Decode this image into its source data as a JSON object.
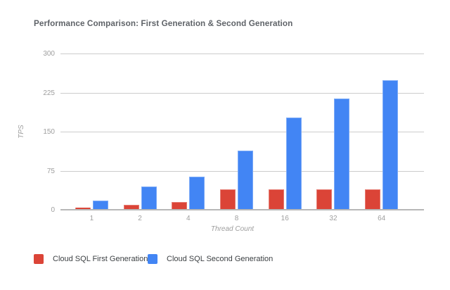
{
  "title": "Performance Comparison: First Generation & Second Generation",
  "chart_data": {
    "type": "bar",
    "title": "Performance Comparison: First Generation & Second Generation",
    "categories": [
      "1",
      "2",
      "4",
      "8",
      "16",
      "32",
      "64"
    ],
    "series": [
      {
        "name": "Cloud SQL First Generation",
        "color": "#DB4437",
        "edge_color": "#E67C73",
        "values": [
          4,
          10,
          15,
          39,
          39,
          39,
          39
        ]
      },
      {
        "name": "Cloud SQL Second Generation",
        "color": "#4285F4",
        "edge_color": "#7BAAF7",
        "values": [
          18,
          45,
          64,
          113,
          177,
          213,
          249
        ]
      }
    ],
    "xlabel": "Thread Count",
    "ylabel": "TPS",
    "ylim": [
      0,
      300
    ],
    "y_ticks": [
      0,
      75,
      150,
      225,
      300
    ],
    "grid": true,
    "legend_position": "bottom"
  },
  "colors": {
    "background": "#ffffff",
    "grid": "#cccccc",
    "axis_line": "#b7b7b7",
    "tick_label": "#9e9e9e",
    "axis_title": "#9e9e9e",
    "chart_title": "#5f6368",
    "legend_text": "#3c4043"
  }
}
